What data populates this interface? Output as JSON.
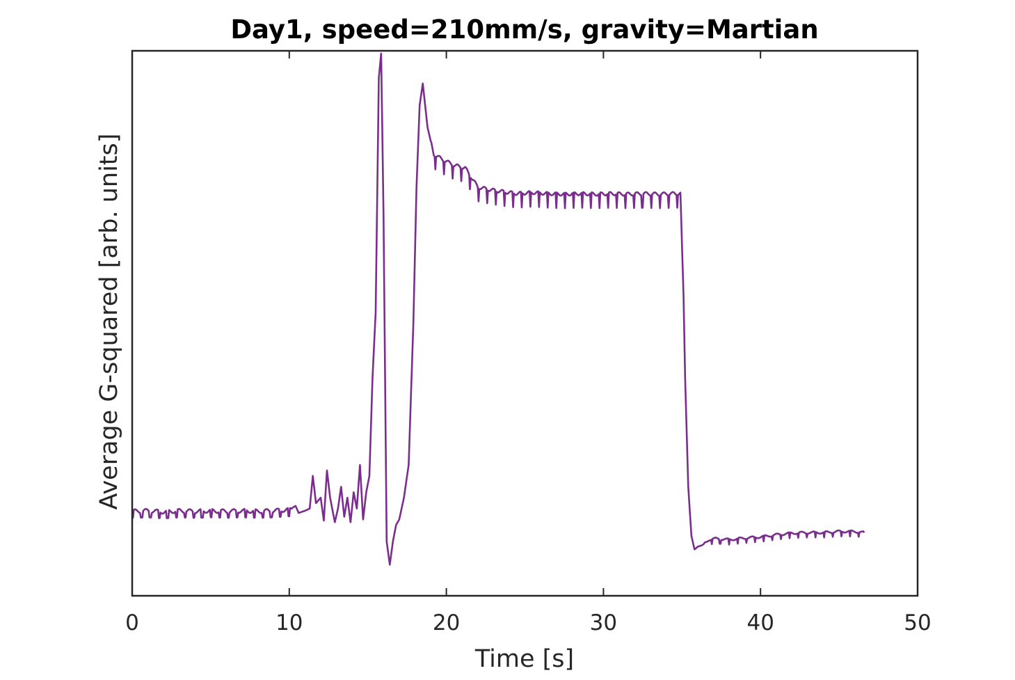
{
  "chart_data": {
    "type": "line",
    "title": "Day1, speed=210mm/s, gravity=Martian",
    "xlabel": "Time [s]",
    "ylabel": "Average G-squared [arb. units]",
    "xlim": [
      0,
      50
    ],
    "ylim": [
      0,
      100
    ],
    "y_tick_labels_shown": false,
    "x_ticks": [
      0,
      10,
      20,
      30,
      40,
      50
    ],
    "x_tick_labels": [
      "0",
      "10",
      "20",
      "30",
      "40",
      "50"
    ],
    "grid": false,
    "legend": "none",
    "series": [
      {
        "color": "#7B2D8E",
        "x": [
          0,
          1,
          2,
          3,
          4,
          5,
          6,
          7,
          8,
          9,
          10,
          10.4,
          10.6,
          11,
          11.3,
          11.5,
          11.7,
          12,
          12.2,
          12.4,
          12.6,
          12.9,
          13.1,
          13.3,
          13.5,
          13.7,
          13.9,
          14.1,
          14.3,
          14.5,
          14.7,
          14.9,
          15.1,
          15.3,
          15.5,
          15.7,
          15.85,
          16,
          16.2,
          16.4,
          16.6,
          16.8,
          17,
          17.3,
          17.6,
          17.9,
          18.1,
          18.3,
          18.5,
          18.8,
          19.2,
          19.8,
          20.5,
          21.2,
          22,
          22.8,
          23.5,
          24.5,
          25.5,
          26.5,
          27.5,
          28.5,
          29.5,
          30.5,
          31.5,
          32.5,
          33.5,
          34.5,
          34.9,
          35.1,
          35.2,
          35.4,
          35.6,
          35.8,
          36,
          36.3,
          36.7,
          37.2,
          38,
          39,
          40,
          41,
          42,
          43,
          44,
          45,
          46,
          46.6
        ],
        "y": [
          15.5,
          15.6,
          15.4,
          15.6,
          15.5,
          15.6,
          15.5,
          15.6,
          15.5,
          15.6,
          15.8,
          16.5,
          15.2,
          15.6,
          16,
          22,
          17,
          18,
          13.8,
          23,
          18,
          13.5,
          16,
          20,
          14.5,
          18,
          13.5,
          19,
          16,
          24,
          14,
          19,
          22,
          40,
          52,
          95,
          99.5,
          70,
          10,
          5.7,
          10,
          13,
          14,
          18,
          24,
          50,
          75,
          90,
          94,
          86,
          81,
          80,
          79,
          78.5,
          75,
          74.5,
          74.2,
          73.8,
          74,
          73.8,
          73.7,
          73.8,
          73.7,
          73.8,
          73.7,
          73.8,
          73.7,
          73.8,
          73.8,
          55,
          40,
          20,
          11,
          8.5,
          9,
          9.3,
          10.3,
          10.5,
          10.3,
          10.6,
          10.8,
          11.2,
          11.5,
          11.6,
          11.6,
          11.8,
          11.8,
          11.6
        ]
      }
    ]
  }
}
